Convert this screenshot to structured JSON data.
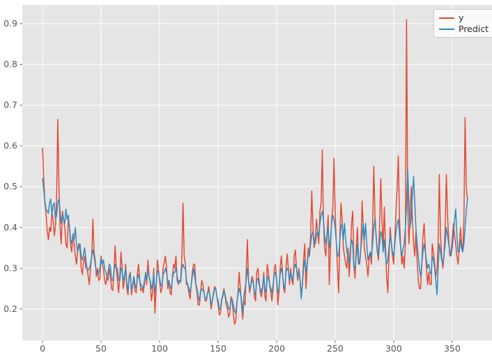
{
  "figure": {
    "background": "#ffffff",
    "plot_background": "#e5e5e5",
    "grid_color": "#fbfbfb",
    "tick_color": "#555555"
  },
  "legend": {
    "position": "upper right",
    "entries": [
      {
        "label": "y",
        "color": "#e24a33"
      },
      {
        "label": "Predict",
        "color": "#348abd"
      }
    ]
  },
  "chart_data": {
    "type": "line",
    "grid": true,
    "legend_position": "upper right",
    "xticks": [
      0,
      50,
      100,
      150,
      200,
      250,
      300,
      350
    ],
    "yticks": [
      0.2,
      0.3,
      0.4,
      0.5,
      0.6,
      0.7,
      0.8,
      0.9
    ],
    "xlim": [
      -17.3,
      384.0
    ],
    "ylim": [
      0.123,
      0.946
    ],
    "x_start": 0,
    "x_step": 1,
    "series": [
      {
        "name": "y",
        "color": "#e24a33",
        "values": [
          0.595,
          0.52,
          0.46,
          0.435,
          0.39,
          0.37,
          0.4,
          0.39,
          0.44,
          0.42,
          0.38,
          0.4,
          0.47,
          0.665,
          0.5,
          0.4,
          0.36,
          0.44,
          0.42,
          0.4,
          0.36,
          0.35,
          0.42,
          0.4,
          0.355,
          0.34,
          0.385,
          0.36,
          0.33,
          0.31,
          0.345,
          0.36,
          0.35,
          0.3,
          0.285,
          0.315,
          0.33,
          0.3,
          0.3,
          0.28,
          0.26,
          0.3,
          0.33,
          0.42,
          0.34,
          0.32,
          0.28,
          0.3,
          0.27,
          0.275,
          0.33,
          0.31,
          0.3,
          0.27,
          0.26,
          0.28,
          0.27,
          0.3,
          0.28,
          0.25,
          0.245,
          0.29,
          0.355,
          0.3,
          0.27,
          0.24,
          0.28,
          0.34,
          0.3,
          0.25,
          0.27,
          0.31,
          0.25,
          0.235,
          0.28,
          0.29,
          0.235,
          0.26,
          0.27,
          0.245,
          0.24,
          0.285,
          0.31,
          0.27,
          0.245,
          0.25,
          0.24,
          0.26,
          0.29,
          0.26,
          0.32,
          0.28,
          0.265,
          0.22,
          0.24,
          0.3,
          0.19,
          0.25,
          0.32,
          0.3,
          0.27,
          0.24,
          0.25,
          0.3,
          0.315,
          0.33,
          0.3,
          0.25,
          0.27,
          0.24,
          0.235,
          0.28,
          0.31,
          0.3,
          0.33,
          0.27,
          0.26,
          0.27,
          0.27,
          0.32,
          0.46,
          0.33,
          0.31,
          0.26,
          0.26,
          0.24,
          0.225,
          0.26,
          0.29,
          0.31,
          0.31,
          0.26,
          0.24,
          0.21,
          0.21,
          0.24,
          0.27,
          0.26,
          0.24,
          0.22,
          0.22,
          0.24,
          0.255,
          0.23,
          0.2,
          0.22,
          0.24,
          0.255,
          0.25,
          0.23,
          0.21,
          0.185,
          0.19,
          0.22,
          0.235,
          0.25,
          0.23,
          0.21,
          0.2,
          0.18,
          0.19,
          0.23,
          0.22,
          0.19,
          0.163,
          0.17,
          0.21,
          0.24,
          0.29,
          0.25,
          0.21,
          0.175,
          0.22,
          0.21,
          0.29,
          0.37,
          0.27,
          0.24,
          0.26,
          0.28,
          0.27,
          0.23,
          0.22,
          0.29,
          0.3,
          0.27,
          0.24,
          0.23,
          0.25,
          0.29,
          0.23,
          0.22,
          0.31,
          0.29,
          0.26,
          0.24,
          0.22,
          0.25,
          0.3,
          0.31,
          0.27,
          0.21,
          0.24,
          0.3,
          0.33,
          0.29,
          0.25,
          0.24,
          0.3,
          0.335,
          0.3,
          0.26,
          0.3,
          0.27,
          0.26,
          0.33,
          0.345,
          0.3,
          0.27,
          0.3,
          0.27,
          0.24,
          0.26,
          0.32,
          0.36,
          0.25,
          0.3,
          0.35,
          0.33,
          0.38,
          0.49,
          0.4,
          0.35,
          0.37,
          0.42,
          0.39,
          0.36,
          0.44,
          0.46,
          0.59,
          0.42,
          0.35,
          0.33,
          0.38,
          0.43,
          0.26,
          0.35,
          0.42,
          0.45,
          0.57,
          0.44,
          0.36,
          0.3,
          0.24,
          0.38,
          0.46,
          0.42,
          0.35,
          0.33,
          0.31,
          0.3,
          0.35,
          0.28,
          0.33,
          0.41,
          0.44,
          0.31,
          0.275,
          0.35,
          0.4,
          0.32,
          0.31,
          0.35,
          0.465,
          0.4,
          0.35,
          0.33,
          0.31,
          0.28,
          0.32,
          0.34,
          0.31,
          0.4,
          0.55,
          0.43,
          0.38,
          0.34,
          0.32,
          0.41,
          0.52,
          0.42,
          0.35,
          0.45,
          0.35,
          0.28,
          0.24,
          0.33,
          0.4,
          0.36,
          0.33,
          0.31,
          0.38,
          0.44,
          0.5,
          0.575,
          0.42,
          0.35,
          0.31,
          0.33,
          0.3,
          0.36,
          0.91,
          0.45,
          0.36,
          0.42,
          0.5,
          0.42,
          0.36,
          0.33,
          0.39,
          0.32,
          0.27,
          0.25,
          0.25,
          0.31,
          0.38,
          0.41,
          0.35,
          0.3,
          0.26,
          0.29,
          0.26,
          0.26,
          0.36,
          0.34,
          0.31,
          0.28,
          0.3,
          0.36,
          0.53,
          0.38,
          0.33,
          0.3,
          0.33,
          0.4,
          0.53,
          0.43,
          0.37,
          0.33,
          0.34,
          0.37,
          0.41,
          0.38,
          0.36,
          0.33,
          0.31,
          0.35,
          0.4,
          0.36,
          0.34,
          0.42,
          0.67,
          0.5,
          0.47
        ]
      },
      {
        "name": "Predict",
        "color": "#348abd",
        "values": [
          0.52,
          0.49,
          0.465,
          0.445,
          0.44,
          0.435,
          0.46,
          0.47,
          0.43,
          0.455,
          0.46,
          0.42,
          0.43,
          0.46,
          0.47,
          0.44,
          0.41,
          0.43,
          0.42,
          0.41,
          0.445,
          0.42,
          0.43,
          0.4,
          0.37,
          0.36,
          0.38,
          0.37,
          0.4,
          0.36,
          0.34,
          0.35,
          0.36,
          0.33,
          0.32,
          0.335,
          0.35,
          0.32,
          0.3,
          0.295,
          0.3,
          0.31,
          0.33,
          0.345,
          0.33,
          0.31,
          0.29,
          0.285,
          0.29,
          0.3,
          0.325,
          0.31,
          0.32,
          0.3,
          0.29,
          0.28,
          0.29,
          0.31,
          0.305,
          0.27,
          0.27,
          0.29,
          0.31,
          0.3,
          0.3,
          0.27,
          0.27,
          0.3,
          0.295,
          0.27,
          0.28,
          0.3,
          0.265,
          0.245,
          0.275,
          0.285,
          0.245,
          0.26,
          0.28,
          0.26,
          0.25,
          0.275,
          0.285,
          0.27,
          0.26,
          0.255,
          0.25,
          0.27,
          0.285,
          0.27,
          0.295,
          0.28,
          0.27,
          0.25,
          0.26,
          0.285,
          0.24,
          0.26,
          0.295,
          0.29,
          0.275,
          0.26,
          0.255,
          0.285,
          0.29,
          0.3,
          0.29,
          0.265,
          0.27,
          0.255,
          0.25,
          0.275,
          0.29,
          0.29,
          0.3,
          0.28,
          0.265,
          0.27,
          0.265,
          0.3,
          0.31,
          0.3,
          0.3,
          0.27,
          0.26,
          0.25,
          0.24,
          0.26,
          0.28,
          0.3,
          0.28,
          0.26,
          0.25,
          0.23,
          0.22,
          0.245,
          0.25,
          0.245,
          0.24,
          0.225,
          0.225,
          0.24,
          0.245,
          0.235,
          0.21,
          0.22,
          0.235,
          0.25,
          0.25,
          0.23,
          0.22,
          0.2,
          0.2,
          0.225,
          0.23,
          0.245,
          0.235,
          0.22,
          0.215,
          0.2,
          0.2,
          0.22,
          0.225,
          0.21,
          0.195,
          0.19,
          0.215,
          0.235,
          0.25,
          0.24,
          0.22,
          0.19,
          0.23,
          0.25,
          0.27,
          0.3,
          0.27,
          0.25,
          0.26,
          0.27,
          0.265,
          0.24,
          0.235,
          0.27,
          0.275,
          0.26,
          0.25,
          0.24,
          0.255,
          0.28,
          0.25,
          0.24,
          0.28,
          0.275,
          0.26,
          0.25,
          0.24,
          0.26,
          0.285,
          0.29,
          0.27,
          0.24,
          0.25,
          0.285,
          0.3,
          0.285,
          0.26,
          0.25,
          0.29,
          0.3,
          0.295,
          0.27,
          0.29,
          0.28,
          0.27,
          0.3,
          0.31,
          0.3,
          0.28,
          0.29,
          0.27,
          0.225,
          0.26,
          0.3,
          0.32,
          0.29,
          0.31,
          0.33,
          0.33,
          0.36,
          0.38,
          0.39,
          0.37,
          0.36,
          0.38,
          0.39,
          0.38,
          0.41,
          0.43,
          0.44,
          0.42,
          0.38,
          0.36,
          0.38,
          0.4,
          0.35,
          0.37,
          0.41,
          0.43,
          0.42,
          0.4,
          0.36,
          0.33,
          0.33,
          0.37,
          0.4,
          0.41,
          0.37,
          0.41,
          0.37,
          0.34,
          0.33,
          0.31,
          0.35,
          0.37,
          0.36,
          0.3,
          0.3,
          0.33,
          0.36,
          0.31,
          0.32,
          0.35,
          0.38,
          0.41,
          0.37,
          0.41,
          0.36,
          0.32,
          0.33,
          0.34,
          0.33,
          0.36,
          0.4,
          0.42,
          0.38,
          0.35,
          0.33,
          0.36,
          0.39,
          0.38,
          0.34,
          0.37,
          0.33,
          0.31,
          0.32,
          0.35,
          0.38,
          0.36,
          0.34,
          0.33,
          0.36,
          0.39,
          0.41,
          0.42,
          0.38,
          0.35,
          0.33,
          0.35,
          0.36,
          0.4,
          0.46,
          0.54,
          0.46,
          0.4,
          0.42,
          0.48,
          0.525,
          0.46,
          0.4,
          0.36,
          0.33,
          0.3,
          0.28,
          0.31,
          0.34,
          0.36,
          0.34,
          0.32,
          0.3,
          0.31,
          0.29,
          0.285,
          0.33,
          0.32,
          0.3,
          0.27,
          0.235,
          0.3,
          0.36,
          0.34,
          0.32,
          0.31,
          0.33,
          0.36,
          0.4,
          0.38,
          0.36,
          0.34,
          0.33,
          0.35,
          0.38,
          0.42,
          0.445,
          0.38,
          0.34,
          0.34,
          0.37,
          0.35,
          0.34,
          0.36,
          0.4,
          0.44,
          0.47
        ]
      }
    ]
  }
}
